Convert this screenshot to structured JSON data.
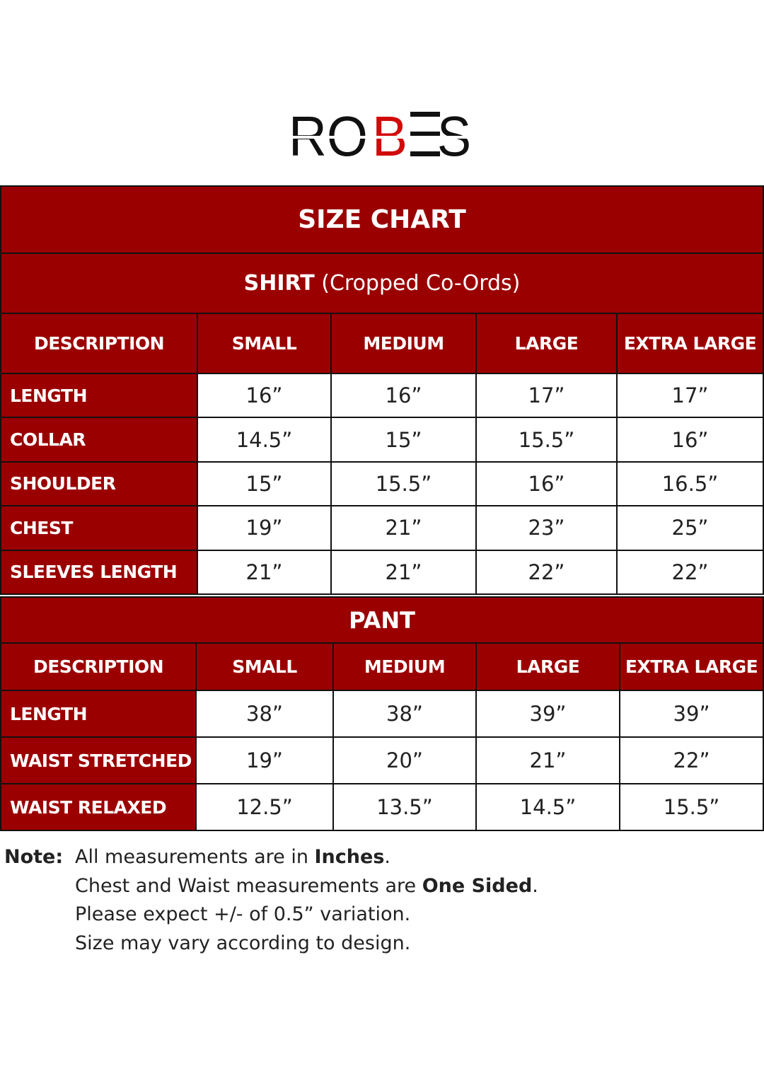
{
  "logo": {
    "text": "ROBES",
    "accent_color": "#d10a0a",
    "text_color": "#111111"
  },
  "colors": {
    "header_bg": "#9b0000",
    "header_text": "#ffffff"
  },
  "shirt": {
    "title": "SIZE CHART",
    "subtitle_bold": "SHIRT",
    "subtitle_rest": " (Cropped Co-Ords)",
    "headers": [
      "DESCRIPTION",
      "SMALL",
      "MEDIUM",
      "LARGE",
      "EXTRA LARGE"
    ],
    "rows": [
      {
        "label": "LENGTH",
        "values": [
          "16”",
          "16”",
          "17”",
          "17”"
        ]
      },
      {
        "label": "COLLAR",
        "values": [
          "14.5”",
          "15”",
          "15.5”",
          "16”"
        ]
      },
      {
        "label": "SHOULDER",
        "values": [
          "15”",
          "15.5”",
          "16”",
          "16.5”"
        ]
      },
      {
        "label": "CHEST",
        "values": [
          "19”",
          "21”",
          "23”",
          "25”"
        ]
      },
      {
        "label": "SLEEVES LENGTH",
        "values": [
          "21”",
          "21”",
          "22”",
          "22”"
        ]
      }
    ]
  },
  "pant": {
    "title": "PANT",
    "headers": [
      "DESCRIPTION",
      "SMALL",
      "MEDIUM",
      "LARGE",
      "EXTRA LARGE"
    ],
    "rows": [
      {
        "label": "LENGTH",
        "values": [
          "38”",
          "38”",
          "39”",
          "39”"
        ]
      },
      {
        "label": "WAIST STRETCHED",
        "values": [
          "19”",
          "20”",
          "21”",
          "22”"
        ]
      },
      {
        "label": "WAIST RELAXED",
        "values": [
          "12.5”",
          "13.5”",
          "14.5”",
          "15.5”"
        ]
      }
    ]
  },
  "notes": {
    "label": "Note:",
    "line1_pre": "All measurements are in ",
    "line1_bold": "Inches",
    "line1_post": ".",
    "line2_pre": "Chest and Waist measurements are ",
    "line2_bold": "One Sided",
    "line2_post": ".",
    "line3": "Please expect +/- of 0.5” variation.",
    "line4": "Size may vary according to design."
  }
}
